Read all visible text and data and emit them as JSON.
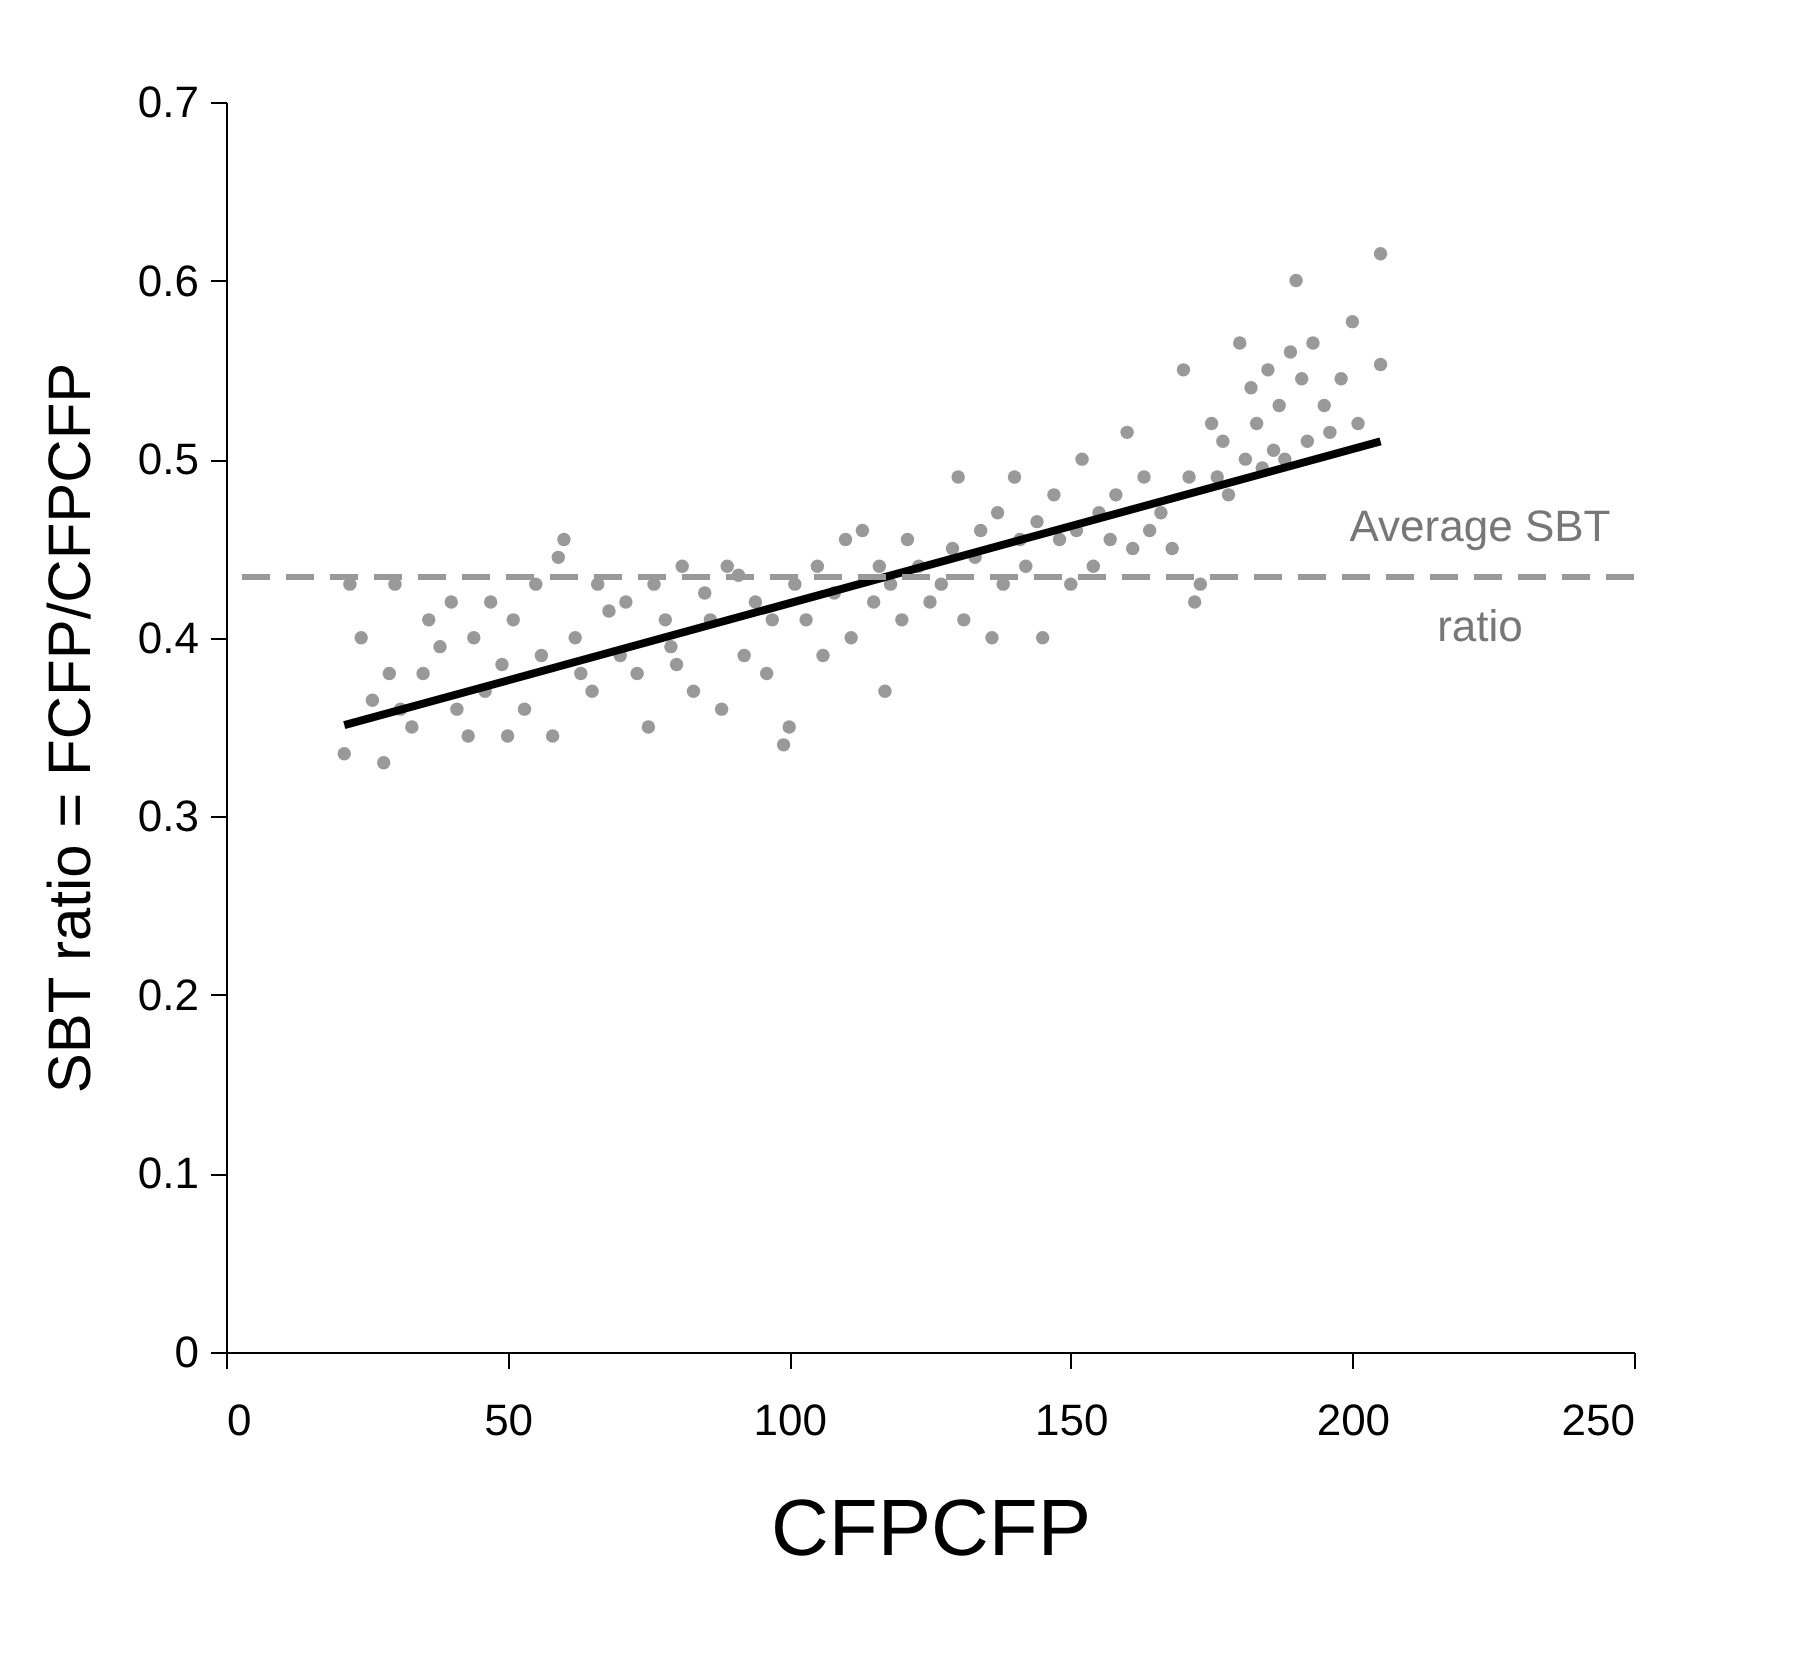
{
  "chart_data": {
    "type": "scatter",
    "xlabel": "CFPCFP",
    "ylabel": "SBT ratio = FCFP/CFPCFP",
    "xlim": [
      0,
      250
    ],
    "xticks": [
      0,
      50,
      100,
      150,
      200,
      250
    ],
    "ylim": [
      0,
      0.7
    ],
    "yticks": [
      0,
      0.1,
      0.2,
      0.3,
      0.4,
      0.5,
      0.6,
      0.7
    ],
    "grid": false,
    "series": [
      {
        "color": "#999999",
        "marker": "circle",
        "x": [
          21,
          22,
          24,
          26,
          28,
          29,
          30,
          31,
          33,
          35,
          36,
          38,
          40,
          41,
          43,
          44,
          46,
          47,
          49,
          50,
          51,
          53,
          55,
          56,
          58,
          59,
          60,
          62,
          63,
          65,
          66,
          68,
          70,
          71,
          73,
          75,
          76,
          78,
          79,
          80,
          81,
          83,
          85,
          86,
          88,
          89,
          91,
          92,
          94,
          96,
          97,
          99,
          100,
          101,
          103,
          105,
          106,
          108,
          110,
          111,
          113,
          115,
          116,
          117,
          118,
          120,
          121,
          123,
          125,
          127,
          129,
          130,
          131,
          133,
          134,
          136,
          137,
          138,
          140,
          141,
          142,
          144,
          145,
          147,
          148,
          150,
          151,
          152,
          154,
          155,
          157,
          158,
          160,
          161,
          163,
          164,
          166,
          168,
          170,
          171,
          172,
          173,
          175,
          176,
          177,
          178,
          180,
          181,
          182,
          183,
          184,
          185,
          186,
          187,
          188,
          189,
          190,
          191,
          192,
          193,
          195,
          196,
          198,
          200,
          201,
          205,
          205
        ],
        "values": [
          0.335,
          0.43,
          0.4,
          0.365,
          0.33,
          0.38,
          0.43,
          0.36,
          0.35,
          0.38,
          0.41,
          0.395,
          0.42,
          0.36,
          0.345,
          0.4,
          0.37,
          0.42,
          0.385,
          0.345,
          0.41,
          0.36,
          0.43,
          0.39,
          0.345,
          0.445,
          0.455,
          0.4,
          0.38,
          0.37,
          0.43,
          0.415,
          0.39,
          0.42,
          0.38,
          0.35,
          0.43,
          0.41,
          0.395,
          0.385,
          0.44,
          0.37,
          0.425,
          0.41,
          0.36,
          0.44,
          0.435,
          0.39,
          0.42,
          0.38,
          0.41,
          0.34,
          0.35,
          0.43,
          0.41,
          0.44,
          0.39,
          0.425,
          0.455,
          0.4,
          0.46,
          0.42,
          0.44,
          0.37,
          0.43,
          0.41,
          0.455,
          0.44,
          0.42,
          0.43,
          0.45,
          0.49,
          0.41,
          0.445,
          0.46,
          0.4,
          0.47,
          0.43,
          0.49,
          0.455,
          0.44,
          0.465,
          0.4,
          0.48,
          0.455,
          0.43,
          0.46,
          0.5,
          0.44,
          0.47,
          0.455,
          0.48,
          0.515,
          0.45,
          0.49,
          0.46,
          0.47,
          0.45,
          0.55,
          0.49,
          0.42,
          0.43,
          0.52,
          0.49,
          0.51,
          0.48,
          0.565,
          0.5,
          0.54,
          0.52,
          0.495,
          0.55,
          0.505,
          0.53,
          0.5,
          0.56,
          0.6,
          0.545,
          0.51,
          0.565,
          0.53,
          0.515,
          0.545,
          0.577,
          0.52,
          0.615,
          0.553
        ]
      },
      {
        "type": "line",
        "color": "#000000",
        "x": [
          21,
          205
        ],
        "values": [
          0.351,
          0.51
        ]
      }
    ],
    "ref_lines": [
      {
        "axis": "y",
        "value": 0.434,
        "label": "Average SBT ratio",
        "color": "#999999",
        "line_style": "dashed"
      }
    ]
  }
}
